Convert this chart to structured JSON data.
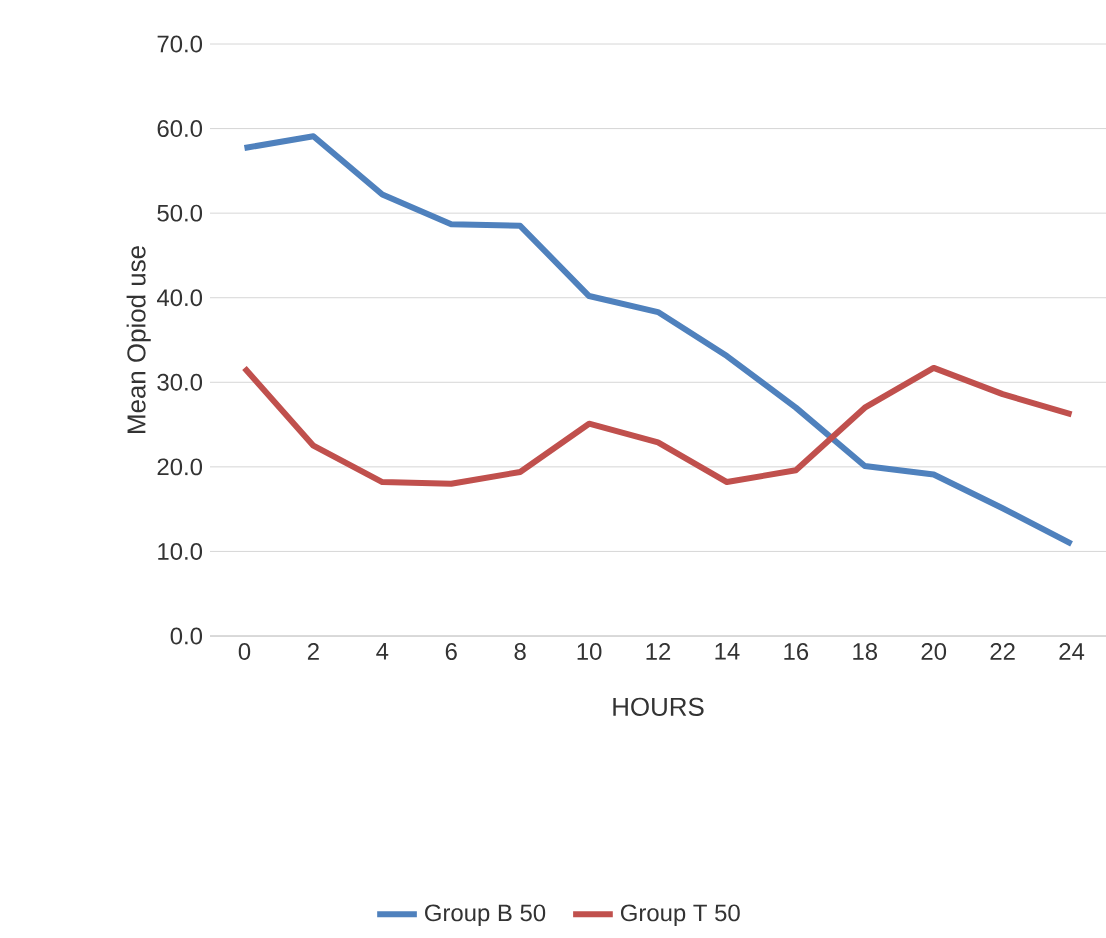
{
  "chart_data": {
    "type": "line",
    "xlabel": "HOURS",
    "ylabel": "Mean Opiod use",
    "categories": [
      "0",
      "2",
      "4",
      "6",
      "8",
      "10",
      "12",
      "14",
      "16",
      "18",
      "20",
      "22",
      "24"
    ],
    "series": [
      {
        "name": "Group B 50",
        "color": "#4f81bd",
        "values": [
          57.7,
          59.1,
          52.2,
          48.7,
          48.5,
          40.2,
          38.3,
          33.1,
          27.0,
          20.1,
          19.1,
          15.1,
          10.9
        ]
      },
      {
        "name": "Group T 50",
        "color": "#c0504d",
        "values": [
          31.7,
          22.5,
          18.2,
          18.0,
          19.4,
          25.1,
          22.9,
          18.2,
          19.6,
          27.0,
          31.7,
          28.6,
          26.2
        ]
      }
    ],
    "ylim": [
      0,
      70
    ],
    "yticks": [
      {
        "value": 0,
        "label": "0.0"
      },
      {
        "value": 10,
        "label": "10.0"
      },
      {
        "value": 20,
        "label": "20.0"
      },
      {
        "value": 30,
        "label": "30.0"
      },
      {
        "value": 40,
        "label": "40.0"
      },
      {
        "value": 50,
        "label": "50.0"
      },
      {
        "value": 60,
        "label": "60.0"
      },
      {
        "value": 70,
        "label": "70.0"
      }
    ],
    "grid": "y",
    "legend": "bottom",
    "marker": "none",
    "line_style": "solid"
  }
}
